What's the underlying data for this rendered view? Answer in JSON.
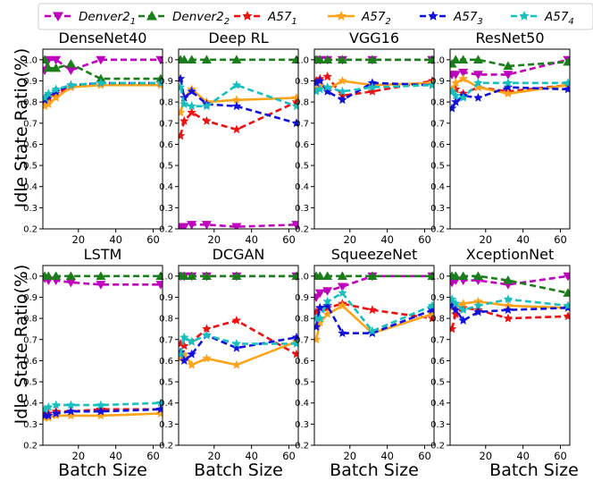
{
  "figure": {
    "ylabel": "Idle State Ratio(%)",
    "xlabel": "Batch Size"
  },
  "legend": [
    {
      "base": "Denver2",
      "sub": "1",
      "color": "#bf00bf",
      "marker": "tri-down",
      "dash": true
    },
    {
      "base": "Denver2",
      "sub": "2",
      "color": "#1a7f1a",
      "marker": "tri-up",
      "dash": true
    },
    {
      "base": "A57",
      "sub": "1",
      "color": "#ee1111",
      "marker": "star",
      "dash": true
    },
    {
      "base": "A57",
      "sub": "2",
      "color": "#ffa31a",
      "marker": "star",
      "dash": false
    },
    {
      "base": "A57",
      "sub": "3",
      "color": "#1111dd",
      "marker": "star",
      "dash": true
    },
    {
      "base": "A57",
      "sub": "4",
      "color": "#17bfbf",
      "marker": "star",
      "dash": true
    }
  ],
  "chart_data": [
    {
      "type": "line",
      "title": "DenseNet40",
      "ylim": [
        0.2,
        1.05
      ],
      "xlim": [
        1,
        65
      ],
      "yticks": [
        "0.2",
        "0.3",
        "0.4",
        "0.5",
        "0.6",
        "0.7",
        "0.8",
        "0.9",
        "1.0"
      ],
      "xticks": [
        "20",
        "40",
        "60"
      ],
      "series": [
        {
          "name": "Denver2_1",
          "x": [
            2,
            4,
            8,
            16,
            32,
            64
          ],
          "y": [
            0.95,
            1.0,
            1.0,
            0.95,
            1.0,
            1.0
          ]
        },
        {
          "name": "Denver2_2",
          "x": [
            2,
            4,
            8,
            16,
            32,
            64
          ],
          "y": [
            1.0,
            0.96,
            0.96,
            0.98,
            0.91,
            0.91
          ]
        },
        {
          "name": "A57_1",
          "x": [
            2,
            4,
            8,
            16,
            32,
            64
          ],
          "y": [
            0.8,
            0.82,
            0.84,
            0.87,
            0.89,
            0.89
          ]
        },
        {
          "name": "A57_2",
          "x": [
            2,
            4,
            8,
            16,
            32,
            64
          ],
          "y": [
            0.78,
            0.79,
            0.82,
            0.87,
            0.88,
            0.88
          ]
        },
        {
          "name": "A57_3",
          "x": [
            2,
            4,
            8,
            16,
            32,
            64
          ],
          "y": [
            0.81,
            0.83,
            0.85,
            0.88,
            0.89,
            0.89
          ]
        },
        {
          "name": "A57_4",
          "x": [
            2,
            4,
            8,
            16,
            32,
            64
          ],
          "y": [
            0.82,
            0.84,
            0.86,
            0.88,
            0.89,
            0.89
          ]
        }
      ]
    },
    {
      "type": "line",
      "title": "Deep RL",
      "ylim": [
        0.2,
        1.05
      ],
      "xlim": [
        1,
        65
      ],
      "yticks": [
        "0.2",
        "0.3",
        "0.4",
        "0.5",
        "0.6",
        "0.7",
        "0.8",
        "0.9",
        "1.0"
      ],
      "xticks": [
        "20",
        "40",
        "60"
      ],
      "series": [
        {
          "name": "Denver2_1",
          "x": [
            2,
            4,
            8,
            16,
            32,
            64
          ],
          "y": [
            0.21,
            0.21,
            0.22,
            0.22,
            0.21,
            0.22
          ]
        },
        {
          "name": "Denver2_2",
          "x": [
            2,
            4,
            8,
            16,
            32,
            64
          ],
          "y": [
            1.0,
            1.0,
            1.0,
            1.0,
            1.0,
            1.0
          ]
        },
        {
          "name": "A57_1",
          "x": [
            2,
            4,
            8,
            16,
            32,
            64
          ],
          "y": [
            0.64,
            0.71,
            0.75,
            0.71,
            0.67,
            0.8
          ]
        },
        {
          "name": "A57_2",
          "x": [
            2,
            4,
            8,
            16,
            32,
            64
          ],
          "y": [
            0.75,
            0.82,
            0.86,
            0.8,
            0.81,
            0.82
          ]
        },
        {
          "name": "A57_3",
          "x": [
            2,
            4,
            8,
            16,
            32,
            64
          ],
          "y": [
            0.91,
            0.82,
            0.85,
            0.79,
            0.78,
            0.7
          ]
        },
        {
          "name": "A57_4",
          "x": [
            2,
            4,
            8,
            16,
            32,
            64
          ],
          "y": [
            0.87,
            0.79,
            0.78,
            0.78,
            0.88,
            0.78
          ]
        }
      ]
    },
    {
      "type": "line",
      "title": "VGG16",
      "ylim": [
        0.2,
        1.05
      ],
      "xlim": [
        1,
        65
      ],
      "yticks": [
        "0.2",
        "0.3",
        "0.4",
        "0.5",
        "0.6",
        "0.7",
        "0.8",
        "0.9",
        "1.0"
      ],
      "xticks": [
        "20",
        "40",
        "60"
      ],
      "series": [
        {
          "name": "Denver2_1",
          "x": [
            2,
            4,
            8,
            16,
            32,
            64
          ],
          "y": [
            1.0,
            1.0,
            1.0,
            1.0,
            1.0,
            1.0
          ]
        },
        {
          "name": "Denver2_2",
          "x": [
            2,
            4,
            8,
            16,
            32,
            64
          ],
          "y": [
            1.0,
            1.0,
            1.0,
            1.0,
            1.0,
            1.0
          ]
        },
        {
          "name": "A57_1",
          "x": [
            2,
            4,
            8,
            16,
            32,
            64
          ],
          "y": [
            0.9,
            0.91,
            0.92,
            0.83,
            0.85,
            0.9
          ]
        },
        {
          "name": "A57_2",
          "x": [
            2,
            4,
            8,
            16,
            32,
            64
          ],
          "y": [
            0.86,
            0.88,
            0.86,
            0.9,
            0.88,
            0.89
          ]
        },
        {
          "name": "A57_3",
          "x": [
            2,
            4,
            8,
            16,
            32,
            64
          ],
          "y": [
            0.89,
            0.9,
            0.85,
            0.81,
            0.89,
            0.88
          ]
        },
        {
          "name": "A57_4",
          "x": [
            2,
            4,
            8,
            16,
            32,
            64
          ],
          "y": [
            0.85,
            0.86,
            0.87,
            0.85,
            0.87,
            0.88
          ]
        }
      ]
    },
    {
      "type": "line",
      "title": "ResNet50",
      "ylim": [
        0.2,
        1.05
      ],
      "xlim": [
        1,
        65
      ],
      "yticks": [
        "0.2",
        "0.3",
        "0.4",
        "0.5",
        "0.6",
        "0.7",
        "0.8",
        "0.9",
        "1.0"
      ],
      "xticks": [
        "20",
        "40",
        "60"
      ],
      "series": [
        {
          "name": "Denver2_1",
          "x": [
            2,
            4,
            8,
            16,
            32,
            64
          ],
          "y": [
            0.93,
            0.93,
            0.94,
            0.93,
            0.93,
            1.0
          ]
        },
        {
          "name": "Denver2_2",
          "x": [
            2,
            4,
            8,
            16,
            32,
            64
          ],
          "y": [
            0.98,
            1.0,
            1.0,
            1.0,
            0.97,
            0.99
          ]
        },
        {
          "name": "A57_1",
          "x": [
            2,
            4,
            8,
            16,
            32,
            64
          ],
          "y": [
            0.85,
            0.86,
            0.84,
            0.87,
            0.85,
            0.88
          ]
        },
        {
          "name": "A57_2",
          "x": [
            2,
            4,
            8,
            16,
            32,
            64
          ],
          "y": [
            0.86,
            0.89,
            0.91,
            0.87,
            0.84,
            0.88
          ]
        },
        {
          "name": "A57_3",
          "x": [
            2,
            4,
            8,
            16,
            32,
            64
          ],
          "y": [
            0.77,
            0.8,
            0.83,
            0.82,
            0.87,
            0.86
          ]
        },
        {
          "name": "A57_4",
          "x": [
            2,
            4,
            8,
            16,
            32,
            64
          ],
          "y": [
            0.85,
            0.83,
            0.82,
            0.89,
            0.89,
            0.89
          ]
        }
      ]
    },
    {
      "type": "line",
      "title": "LSTM",
      "ylim": [
        0.2,
        1.05
      ],
      "xlim": [
        1,
        65
      ],
      "yticks": [
        "0.2",
        "0.3",
        "0.4",
        "0.5",
        "0.6",
        "0.7",
        "0.8",
        "0.9",
        "1.0"
      ],
      "xticks": [
        "20",
        "40",
        "60"
      ],
      "series": [
        {
          "name": "Denver2_1",
          "x": [
            2,
            4,
            8,
            16,
            32,
            64
          ],
          "y": [
            0.99,
            0.98,
            0.98,
            0.97,
            0.96,
            0.96
          ]
        },
        {
          "name": "Denver2_2",
          "x": [
            2,
            4,
            8,
            16,
            32,
            64
          ],
          "y": [
            1.0,
            1.0,
            1.0,
            1.0,
            1.0,
            1.0
          ]
        },
        {
          "name": "A57_1",
          "x": [
            2,
            4,
            8,
            16,
            32,
            64
          ],
          "y": [
            0.35,
            0.35,
            0.36,
            0.36,
            0.37,
            0.37
          ]
        },
        {
          "name": "A57_2",
          "x": [
            2,
            4,
            8,
            16,
            32,
            64
          ],
          "y": [
            0.33,
            0.33,
            0.34,
            0.34,
            0.34,
            0.35
          ]
        },
        {
          "name": "A57_3",
          "x": [
            2,
            4,
            8,
            16,
            32,
            64
          ],
          "y": [
            0.34,
            0.34,
            0.35,
            0.36,
            0.36,
            0.37
          ]
        },
        {
          "name": "A57_4",
          "x": [
            2,
            4,
            8,
            16,
            32,
            64
          ],
          "y": [
            0.37,
            0.38,
            0.39,
            0.39,
            0.39,
            0.4
          ]
        }
      ]
    },
    {
      "type": "line",
      "title": "DCGAN",
      "ylim": [
        0.2,
        1.05
      ],
      "xlim": [
        1,
        65
      ],
      "yticks": [
        "0.2",
        "0.3",
        "0.4",
        "0.5",
        "0.6",
        "0.7",
        "0.8",
        "0.9",
        "1.0"
      ],
      "xticks": [
        "20",
        "40",
        "60"
      ],
      "series": [
        {
          "name": "Denver2_1",
          "x": [
            2,
            4,
            8,
            16,
            32,
            64
          ],
          "y": [
            1.0,
            1.0,
            1.0,
            1.0,
            1.0,
            1.0
          ]
        },
        {
          "name": "Denver2_2",
          "x": [
            2,
            4,
            8,
            16,
            32,
            64
          ],
          "y": [
            1.0,
            1.0,
            1.0,
            1.0,
            1.0,
            1.0
          ]
        },
        {
          "name": "A57_1",
          "x": [
            2,
            4,
            8,
            16,
            32,
            64
          ],
          "y": [
            0.68,
            0.67,
            0.69,
            0.75,
            0.79,
            0.63
          ]
        },
        {
          "name": "A57_2",
          "x": [
            2,
            4,
            8,
            16,
            32,
            64
          ],
          "y": [
            0.61,
            0.63,
            0.58,
            0.61,
            0.58,
            0.69
          ]
        },
        {
          "name": "A57_3",
          "x": [
            2,
            4,
            8,
            16,
            32,
            64
          ],
          "y": [
            0.64,
            0.6,
            0.63,
            0.72,
            0.66,
            0.71
          ]
        },
        {
          "name": "A57_4",
          "x": [
            2,
            4,
            8,
            16,
            32,
            64
          ],
          "y": [
            0.63,
            0.71,
            0.69,
            0.72,
            0.68,
            0.68
          ]
        }
      ]
    },
    {
      "type": "line",
      "title": "SqueezeNet",
      "ylim": [
        0.2,
        1.05
      ],
      "xlim": [
        1,
        65
      ],
      "yticks": [
        "0.2",
        "0.3",
        "0.4",
        "0.5",
        "0.6",
        "0.7",
        "0.8",
        "0.9",
        "1.0"
      ],
      "xticks": [
        "20",
        "40",
        "60"
      ],
      "series": [
        {
          "name": "Denver2_1",
          "x": [
            2,
            4,
            8,
            16,
            32,
            64
          ],
          "y": [
            0.9,
            0.92,
            0.93,
            0.95,
            1.0,
            1.0
          ]
        },
        {
          "name": "Denver2_2",
          "x": [
            2,
            4,
            8,
            16,
            32,
            64
          ],
          "y": [
            1.0,
            1.0,
            1.0,
            1.0,
            1.0,
            1.0
          ]
        },
        {
          "name": "A57_1",
          "x": [
            2,
            4,
            8,
            16,
            32,
            64
          ],
          "y": [
            0.83,
            0.85,
            0.85,
            0.87,
            0.84,
            0.8
          ]
        },
        {
          "name": "A57_2",
          "x": [
            2,
            4,
            8,
            16,
            32,
            64
          ],
          "y": [
            0.7,
            0.78,
            0.82,
            0.86,
            0.73,
            0.82
          ]
        },
        {
          "name": "A57_3",
          "x": [
            2,
            4,
            8,
            16,
            32,
            64
          ],
          "y": [
            0.76,
            0.85,
            0.86,
            0.73,
            0.73,
            0.84
          ]
        },
        {
          "name": "A57_4",
          "x": [
            2,
            4,
            8,
            16,
            32,
            64
          ],
          "y": [
            0.8,
            0.8,
            0.88,
            0.92,
            0.74,
            0.86
          ]
        }
      ]
    },
    {
      "type": "line",
      "title": "XceptionNet",
      "ylim": [
        0.2,
        1.05
      ],
      "xlim": [
        1,
        65
      ],
      "yticks": [
        "0.2",
        "0.3",
        "0.4",
        "0.5",
        "0.6",
        "0.7",
        "0.8",
        "0.9",
        "1.0"
      ],
      "xticks": [
        "20",
        "40",
        "60"
      ],
      "series": [
        {
          "name": "Denver2_1",
          "x": [
            2,
            4,
            8,
            16,
            32,
            64
          ],
          "y": [
            0.97,
            0.98,
            0.98,
            0.98,
            0.96,
            1.0
          ]
        },
        {
          "name": "Denver2_2",
          "x": [
            2,
            4,
            8,
            16,
            32,
            64
          ],
          "y": [
            1.0,
            1.0,
            1.0,
            1.0,
            0.98,
            0.92
          ]
        },
        {
          "name": "A57_1",
          "x": [
            2,
            4,
            8,
            16,
            32,
            64
          ],
          "y": [
            0.75,
            0.82,
            0.85,
            0.84,
            0.8,
            0.81
          ]
        },
        {
          "name": "A57_2",
          "x": [
            2,
            4,
            8,
            16,
            32,
            64
          ],
          "y": [
            0.85,
            0.86,
            0.87,
            0.88,
            0.86,
            0.85
          ]
        },
        {
          "name": "A57_3",
          "x": [
            2,
            4,
            8,
            16,
            32,
            64
          ],
          "y": [
            0.86,
            0.84,
            0.79,
            0.83,
            0.84,
            0.85
          ]
        },
        {
          "name": "A57_4",
          "x": [
            2,
            4,
            8,
            16,
            32,
            64
          ],
          "y": [
            0.89,
            0.87,
            0.84,
            0.86,
            0.89,
            0.86
          ]
        }
      ]
    }
  ]
}
